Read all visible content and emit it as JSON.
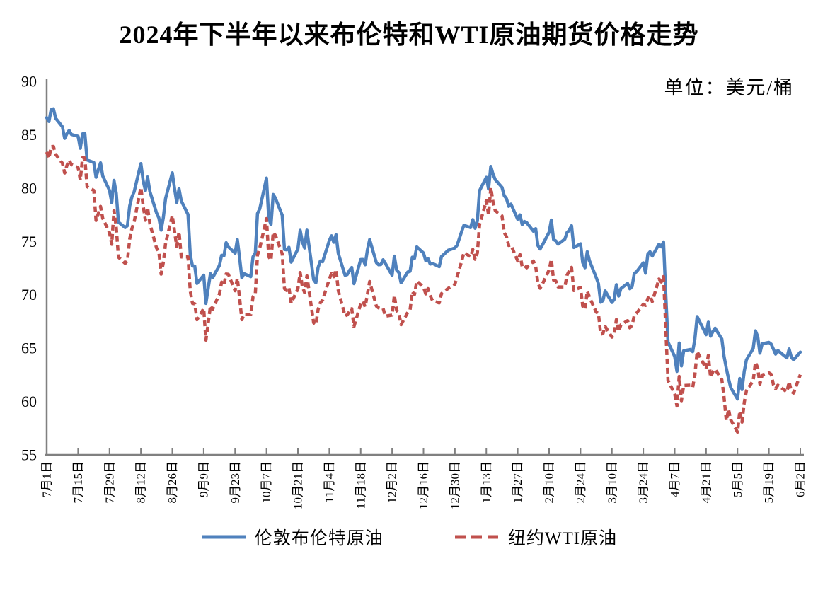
{
  "title": "2024年下半年以来布伦特和WTI原油期货价格走势",
  "unit_label": "单位：美元/桶",
  "legend": [
    {
      "label": "伦敦布伦特原油",
      "style": "solid"
    },
    {
      "label": "纽约WTI原油",
      "style": "dashed"
    }
  ],
  "colors": {
    "brent": "#4F81BD",
    "wti": "#C0504D",
    "axis": "#808080",
    "text": "#000000",
    "background": "#FFFFFF"
  },
  "chart_data": {
    "type": "line",
    "title": "2024年下半年以来布伦特和WTI原油期货价格走势",
    "unit": "美元/桶",
    "xlabel": "",
    "ylabel": "",
    "ylim": [
      55,
      90
    ],
    "y_ticks": [
      55,
      60,
      65,
      70,
      75,
      80,
      85,
      90
    ],
    "grid": false,
    "legend_position": "bottom",
    "x_tick_interval_days": 14,
    "x_tick_labels": [
      "7月1日",
      "7月15日",
      "7月29日",
      "8月12日",
      "8月26日",
      "9月9日",
      "9月23日",
      "10月7日",
      "10月21日",
      "11月4日",
      "11月18日",
      "12月2日",
      "12月16日",
      "12月30日",
      "1月13日",
      "1月27日",
      "2月10日",
      "2月24日",
      "3月10日",
      "3月24日",
      "4月7日",
      "4月21日",
      "5月5日",
      "5月19日",
      "6月2日"
    ],
    "dates": [
      "7/1",
      "7/2",
      "7/3",
      "7/4",
      "7/5",
      "7/8",
      "7/9",
      "7/10",
      "7/11",
      "7/12",
      "7/15",
      "7/16",
      "7/17",
      "7/18",
      "7/19",
      "7/22",
      "7/23",
      "7/24",
      "7/25",
      "7/26",
      "7/29",
      "7/30",
      "7/31",
      "8/1",
      "8/2",
      "8/5",
      "8/6",
      "8/7",
      "8/8",
      "8/9",
      "8/12",
      "8/13",
      "8/14",
      "8/15",
      "8/16",
      "8/19",
      "8/20",
      "8/21",
      "8/22",
      "8/23",
      "8/26",
      "8/27",
      "8/28",
      "8/29",
      "8/30",
      "9/2",
      "9/3",
      "9/4",
      "9/5",
      "9/6",
      "9/9",
      "9/10",
      "9/11",
      "9/12",
      "9/13",
      "9/16",
      "9/17",
      "9/18",
      "9/19",
      "9/20",
      "9/23",
      "9/24",
      "9/25",
      "9/26",
      "9/27",
      "9/30",
      "10/1",
      "10/2",
      "10/3",
      "10/4",
      "10/7",
      "10/8",
      "10/9",
      "10/10",
      "10/11",
      "10/14",
      "10/15",
      "10/16",
      "10/17",
      "10/18",
      "10/21",
      "10/22",
      "10/23",
      "10/24",
      "10/25",
      "10/28",
      "10/29",
      "10/30",
      "10/31",
      "11/1",
      "11/4",
      "11/5",
      "11/6",
      "11/7",
      "11/8",
      "11/11",
      "11/12",
      "11/13",
      "11/14",
      "11/15",
      "11/18",
      "11/19",
      "11/20",
      "11/21",
      "11/22",
      "11/25",
      "11/26",
      "11/27",
      "11/28",
      "11/29",
      "12/2",
      "12/3",
      "12/4",
      "12/5",
      "12/6",
      "12/9",
      "12/10",
      "12/11",
      "12/12",
      "12/13",
      "12/16",
      "12/17",
      "12/18",
      "12/19",
      "12/20",
      "12/23",
      "12/24",
      "12/27",
      "12/30",
      "12/31",
      "1/2",
      "1/3",
      "1/6",
      "1/7",
      "1/8",
      "1/9",
      "1/10",
      "1/13",
      "1/14",
      "1/15",
      "1/16",
      "1/17",
      "1/20",
      "1/21",
      "1/22",
      "1/23",
      "1/24",
      "1/27",
      "1/28",
      "1/29",
      "1/30",
      "1/31",
      "2/3",
      "2/4",
      "2/5",
      "2/6",
      "2/7",
      "2/10",
      "2/11",
      "2/12",
      "2/13",
      "2/14",
      "2/17",
      "2/18",
      "2/19",
      "2/20",
      "2/21",
      "2/24",
      "2/25",
      "2/26",
      "2/27",
      "2/28",
      "3/3",
      "3/4",
      "3/5",
      "3/6",
      "3/7",
      "3/10",
      "3/11",
      "3/12",
      "3/13",
      "3/14",
      "3/17",
      "3/18",
      "3/19",
      "3/20",
      "3/21",
      "3/24",
      "3/25",
      "3/26",
      "3/27",
      "3/28",
      "3/31",
      "4/1",
      "4/2",
      "4/3",
      "4/4",
      "4/7",
      "4/8",
      "4/9",
      "4/10",
      "4/11",
      "4/14",
      "4/15",
      "4/16",
      "4/17",
      "4/21",
      "4/22",
      "4/23",
      "4/24",
      "4/25",
      "4/28",
      "4/29",
      "4/30",
      "5/1",
      "5/2",
      "5/5",
      "5/6",
      "5/7",
      "5/8",
      "5/9",
      "5/12",
      "5/13",
      "5/14",
      "5/15",
      "5/16",
      "5/19",
      "5/20",
      "5/21",
      "5/22",
      "5/23",
      "5/27",
      "5/28",
      "5/29",
      "5/30",
      "6/2"
    ],
    "series": [
      {
        "name": "伦敦布伦特原油",
        "style": "solid",
        "color": "#4F81BD",
        "values": [
          86.6,
          86.24,
          87.34,
          87.43,
          86.54,
          85.75,
          84.66,
          85.08,
          85.4,
          85.03,
          84.85,
          83.73,
          85.08,
          85.11,
          82.63,
          82.4,
          81.01,
          81.71,
          82.37,
          81.13,
          79.78,
          78.63,
          80.72,
          79.52,
          76.81,
          76.3,
          76.48,
          78.33,
          79.16,
          79.66,
          82.3,
          80.69,
          79.76,
          81.04,
          79.68,
          77.66,
          77.2,
          76.05,
          77.22,
          79.02,
          81.43,
          79.94,
          78.65,
          79.94,
          78.8,
          77.52,
          73.75,
          72.7,
          72.69,
          71.06,
          71.84,
          69.19,
          70.61,
          71.97,
          71.61,
          72.75,
          73.7,
          73.65,
          74.88,
          74.49,
          73.9,
          75.17,
          73.46,
          71.6,
          71.98,
          71.7,
          73.56,
          73.9,
          77.62,
          78.05,
          80.93,
          77.18,
          76.58,
          79.4,
          79.04,
          77.46,
          74.25,
          74.22,
          74.45,
          73.06,
          74.29,
          76.04,
          74.96,
          74.38,
          76.05,
          71.42,
          71.12,
          72.55,
          73.16,
          73.1,
          75.08,
          75.53,
          74.92,
          75.63,
          73.87,
          71.83,
          71.89,
          72.28,
          72.56,
          71.04,
          73.3,
          73.31,
          72.81,
          74.23,
          75.17,
          73.01,
          72.81,
          72.83,
          73.28,
          72.94,
          71.83,
          73.62,
          72.31,
          72.09,
          71.12,
          72.14,
          72.19,
          73.52,
          73.41,
          74.49,
          73.91,
          73.19,
          73.39,
          72.88,
          72.94,
          72.63,
          73.58,
          74.17,
          74.39,
          74.64,
          75.93,
          76.51,
          76.3,
          77.05,
          76.23,
          76.92,
          79.76,
          81.01,
          79.92,
          82.03,
          81.29,
          80.79,
          80.07,
          79.29,
          79.0,
          78.29,
          78.5,
          77.08,
          77.49,
          76.58,
          76.87,
          76.76,
          75.96,
          76.2,
          74.61,
          74.29,
          74.66,
          75.87,
          77.0,
          75.18,
          75.05,
          74.74,
          75.22,
          75.84,
          76.04,
          76.48,
          74.43,
          74.78,
          73.02,
          72.53,
          74.04,
          73.18,
          71.62,
          71.04,
          69.3,
          69.46,
          70.36,
          69.28,
          69.56,
          70.95,
          69.88,
          70.58,
          71.07,
          70.56,
          70.78,
          72.0,
          72.16,
          73.0,
          72.02,
          73.79,
          74.03,
          73.63,
          74.74,
          74.49,
          74.95,
          70.14,
          65.58,
          64.21,
          62.82,
          65.48,
          63.33,
          64.76,
          64.88,
          64.67,
          65.85,
          67.96,
          66.26,
          67.44,
          66.12,
          66.55,
          66.87,
          65.86,
          64.25,
          63.12,
          62.13,
          61.29,
          60.23,
          62.15,
          61.12,
          62.84,
          63.91,
          64.96,
          66.63,
          66.09,
          64.53,
          65.41,
          65.54,
          65.38,
          64.91,
          64.44,
          64.78,
          64.09,
          64.92,
          64.15,
          63.9,
          64.63
        ]
      },
      {
        "name": "纽约WTI原油",
        "style": "dashed",
        "color": "#C0504D",
        "values": [
          83.38,
          82.81,
          83.88,
          83.9,
          83.16,
          82.33,
          81.41,
          82.1,
          82.62,
          82.21,
          81.91,
          80.76,
          82.85,
          82.82,
          80.13,
          79.78,
          76.96,
          77.59,
          78.28,
          77.16,
          75.81,
          74.73,
          77.91,
          76.31,
          73.52,
          72.94,
          73.2,
          75.23,
          76.19,
          76.84,
          80.06,
          78.35,
          76.98,
          78.16,
          76.65,
          74.37,
          74.04,
          71.93,
          73.01,
          74.83,
          77.42,
          75.91,
          74.52,
          75.91,
          73.55,
          73.55,
          70.34,
          69.2,
          69.15,
          67.67,
          68.71,
          65.75,
          67.31,
          68.97,
          68.65,
          70.09,
          71.19,
          70.91,
          71.95,
          71.92,
          70.37,
          71.56,
          69.69,
          67.67,
          68.18,
          68.17,
          69.83,
          70.1,
          73.71,
          74.38,
          77.14,
          73.57,
          73.24,
          75.85,
          75.56,
          73.83,
          70.58,
          70.39,
          70.67,
          69.22,
          70.56,
          72.09,
          70.77,
          70.19,
          71.78,
          67.38,
          67.21,
          68.61,
          69.26,
          69.49,
          71.47,
          71.99,
          71.69,
          72.36,
          70.38,
          68.04,
          68.12,
          68.43,
          68.7,
          67.02,
          69.16,
          69.39,
          68.87,
          70.1,
          71.24,
          68.94,
          68.77,
          68.72,
          68.72,
          68.0,
          68.1,
          69.94,
          68.54,
          68.3,
          67.2,
          68.37,
          68.59,
          70.29,
          70.02,
          71.29,
          70.71,
          70.08,
          70.58,
          69.91,
          69.46,
          69.24,
          70.1,
          70.6,
          70.99,
          71.72,
          73.13,
          73.96,
          73.56,
          74.25,
          73.32,
          73.92,
          76.57,
          78.82,
          77.5,
          80.04,
          78.68,
          77.88,
          77.39,
          75.83,
          75.44,
          74.62,
          74.66,
          73.17,
          73.77,
          72.62,
          72.73,
          72.53,
          73.16,
          72.7,
          71.03,
          70.61,
          71.0,
          72.32,
          73.32,
          71.37,
          71.29,
          70.74,
          70.74,
          71.85,
          72.25,
          72.57,
          70.4,
          70.7,
          68.93,
          68.62,
          70.35,
          69.76,
          68.37,
          68.26,
          66.31,
          66.36,
          67.04,
          66.03,
          66.25,
          67.68,
          66.55,
          67.18,
          67.58,
          66.9,
          67.16,
          68.07,
          68.28,
          69.11,
          69.0,
          69.65,
          69.92,
          69.36,
          71.48,
          71.2,
          71.71,
          66.95,
          61.99,
          60.7,
          59.58,
          62.35,
          60.07,
          61.5,
          61.53,
          61.33,
          62.47,
          64.68,
          63.08,
          64.32,
          62.27,
          62.79,
          63.02,
          62.05,
          60.42,
          58.21,
          59.24,
          58.29,
          57.13,
          59.09,
          58.07,
          59.91,
          61.02,
          61.95,
          63.67,
          63.15,
          61.62,
          62.49,
          62.69,
          62.56,
          61.57,
          61.2,
          61.53,
          60.89,
          61.84,
          60.94,
          60.79,
          62.52
        ]
      }
    ]
  }
}
